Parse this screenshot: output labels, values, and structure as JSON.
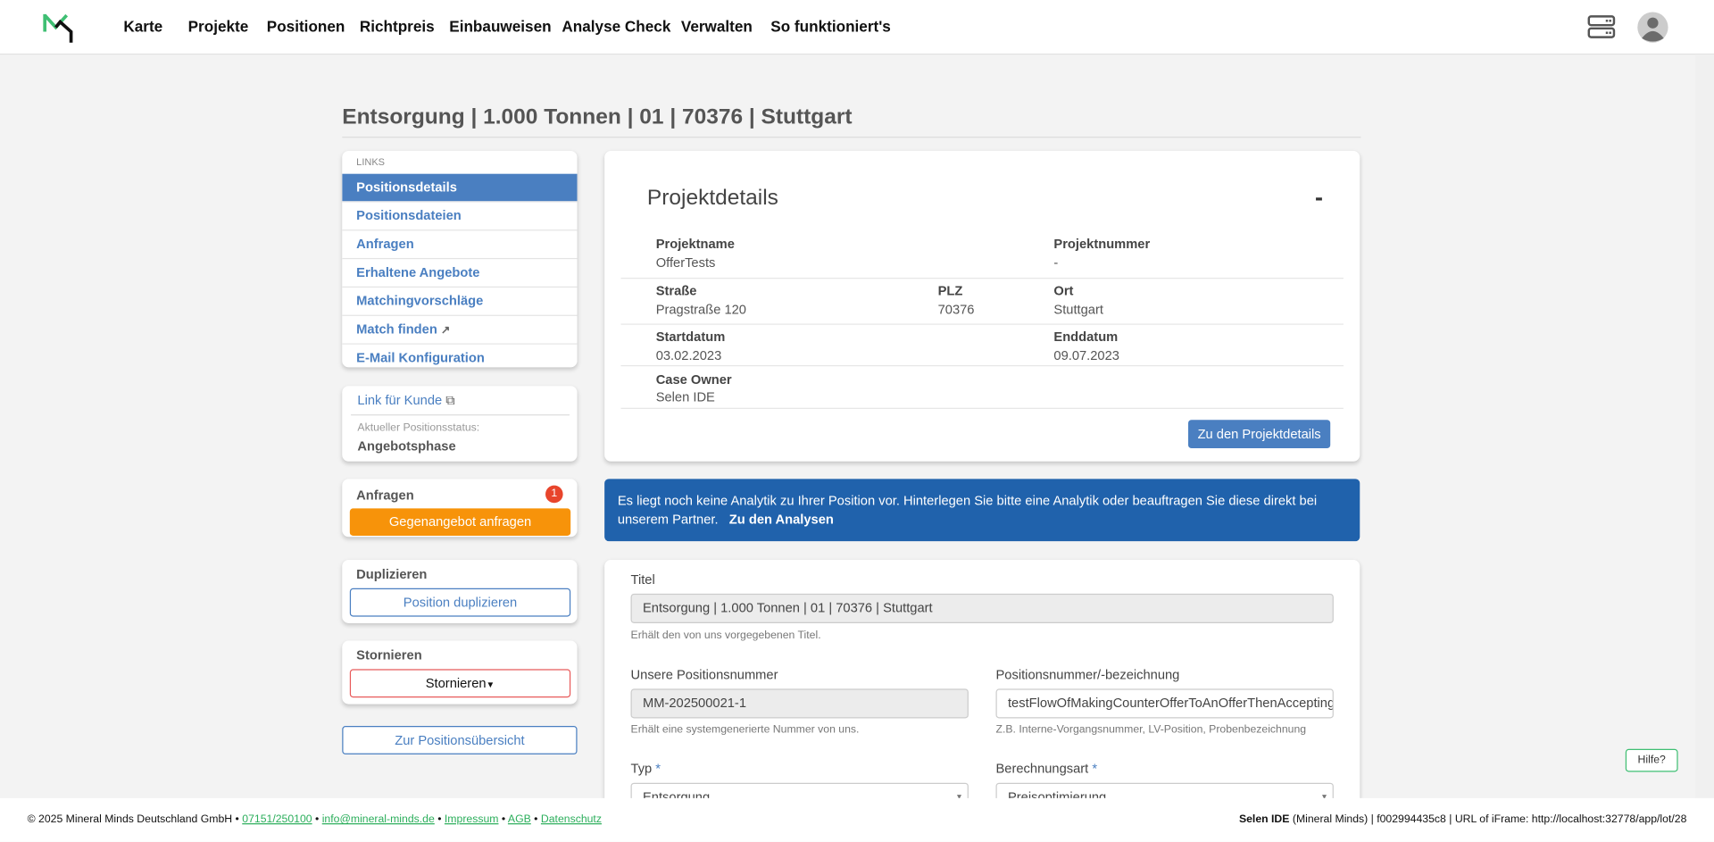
{
  "nav": {
    "items": [
      "Karte",
      "Projekte",
      "Positionen",
      "Richtpreis",
      "Einbauweisen",
      "Analyse Check",
      "Verwalten",
      "So funktioniert's"
    ]
  },
  "page": {
    "title": "Entsorgung | 1.000 Tonnen | 01 | 70376 | Stuttgart"
  },
  "links": {
    "header": "LINKS",
    "items": [
      "Positionsdetails",
      "Positionsdateien",
      "Anfragen",
      "Erhaltene Angebote",
      "Matchingvorschläge",
      "Match finden",
      "E-Mail Konfiguration"
    ]
  },
  "customer": {
    "link_label": "Link für Kunde",
    "status_label": "Aktueller Positionsstatus:",
    "status_value": "Angebotsphase"
  },
  "requests": {
    "title": "Anfragen",
    "badge": "1",
    "button": "Gegenangebot anfragen"
  },
  "duplicate": {
    "title": "Duplizieren",
    "button": "Position duplizieren"
  },
  "cancel": {
    "title": "Stornieren",
    "button": "Stornieren"
  },
  "overview_button": "Zur Positionsübersicht",
  "project": {
    "title": "Projektdetails",
    "collapse": "-",
    "projektname_label": "Projektname",
    "projektname": "OfferTests",
    "projektnummer_label": "Projektnummer",
    "projektnummer": "-",
    "strasse_label": "Straße",
    "strasse": "Pragstraße 120",
    "plz_label": "PLZ",
    "plz": "70376",
    "ort_label": "Ort",
    "ort": "Stuttgart",
    "start_label": "Startdatum",
    "start": "03.02.2023",
    "end_label": "Enddatum",
    "end": "09.07.2023",
    "owner_label": "Case Owner",
    "owner": "Selen IDE",
    "button": "Zu den Projektdetails"
  },
  "alert": {
    "text": "Es liegt noch keine Analytik zu Ihrer Position vor. Hinterlegen Sie bitte eine Analytik oder beauftragen Sie diese direkt bei unserem Partner.",
    "link": "Zu den Analysen"
  },
  "form": {
    "titel_label": "Titel",
    "titel": "Entsorgung | 1.000 Tonnen | 01 | 70376 | Stuttgart",
    "titel_help": "Erhält den von uns vorgegebenen Titel.",
    "posnr_label": "Unsere Positionsnummer",
    "posnr": "MM-202500021-1",
    "posnr_help": "Erhält eine systemgenerierte Nummer von uns.",
    "bez_label": "Positionsnummer/-bezeichnung",
    "bez": "testFlowOfMakingCounterOfferToAnOfferThenAccepting",
    "bez_help": "Z.B. Interne-Vorgangsnummer, LV-Position, Probenbezeichnung",
    "typ_label": "Typ",
    "typ": "Entsorgung",
    "ber_label": "Berechnungsart",
    "ber": "Preisoptimierung",
    "required": "*"
  },
  "footer": {
    "copyright": "© 2025 Mineral Minds Deutschland GmbH",
    "phone": "07151/250100",
    "email": "info@mineral-minds.de",
    "impressum": "Impressum",
    "agb": "AGB",
    "datenschutz": "Datenschutz",
    "sep": "•",
    "user": "Selen IDE",
    "info": "(Mineral Minds) | f002994435c8 | URL of iFrame: http://localhost:32778/app/lot/28"
  },
  "help_button": "Hilfe?"
}
